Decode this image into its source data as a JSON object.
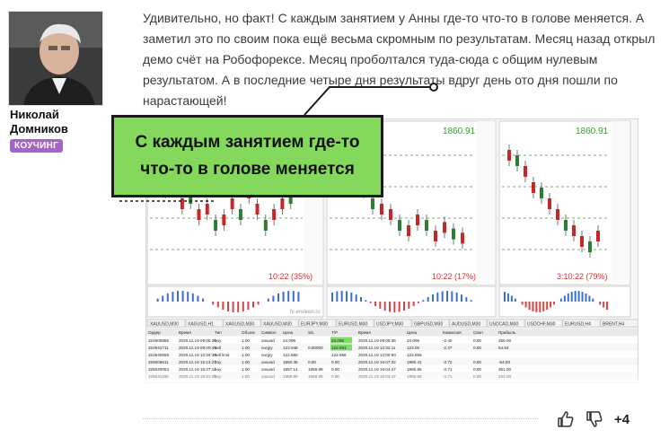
{
  "author": {
    "name": "Николай Домников",
    "role": "КОУЧИНГ"
  },
  "post": {
    "text": "Удивительно, но факт! С каждым занятием у Анны где-то что-то в голове меняется. А заметил это по своим пока ещё весьма скромным по результатам. Месяц назад открыл демо счёт на Робофорексе. Месяц проболтался туда-сюда с общим нулевым результатом. А в последние четыре дня результаты вдруг день ото дня пошли по нарастающей!"
  },
  "callout": {
    "line1": "С каждым занятием где-то",
    "line2": "что-то в голове меняется"
  },
  "terminal": {
    "prices": [
      "1860.91",
      "1860.91"
    ],
    "progress_labels": [
      "10:22 (35%)",
      "10:22 (17%)",
      "3:10:22 (79%)"
    ],
    "watermark": "fx-ereleen.ru",
    "tabs": [
      "XAUUSD,M30",
      "XAGUSD,H1",
      "XAGUSD,M30",
      "XAUUSD,M30",
      "EURJPY,M30",
      "EURUSD,M30",
      "USDJPY,M30",
      "GBPUSD,M30",
      "AUDUSD,M30",
      "USDCAD,M30",
      "USDCHF,M30",
      "EURUSD,H4",
      "BRENT,H4"
    ],
    "table_headers": [
      "Ордер",
      "Время",
      "Тип",
      "Объем",
      "Символ",
      "Цена",
      "S/L",
      "T/P",
      "Время",
      "Цена",
      "Комиссия",
      "Своп",
      "Прибыль"
    ],
    "rows": [
      [
        "324906886",
        "2020.11.19 09:05:36",
        "buy",
        "1.00",
        "xauusd",
        "24.095",
        "",
        "24.096",
        "2020.11.19 09:05:36",
        "24.096",
        "-2.40",
        "0.00",
        "255.00"
      ],
      [
        "324941711",
        "2020.11.19 09:40:49",
        "sell",
        "1.00",
        "eurjpy",
        "123.049",
        "0.00000",
        "122.591",
        "2020.11.19 12:32:11",
        "123.00",
        "-2.37",
        "0.00",
        "54.84"
      ],
      [
        "324940658",
        "2020.11.19 12:34:30",
        "sell limit",
        "1.00",
        "eurjpy",
        "122.880",
        "",
        "122.856",
        "2020.11.19 12:00:50",
        "122.856",
        "",
        "",
        ""
      ],
      [
        "325006611",
        "2020.11.19 15:13:27",
        "buy",
        "1.00",
        "xauusd",
        "1860.36",
        "0.00",
        "0.00",
        "2020.11.19 16:07:32",
        "1860.41",
        "-3.72",
        "0.00",
        "-54.00"
      ],
      [
        "325040063",
        "2020.11.19 15:37:11",
        "buy",
        "1.00",
        "xauusd",
        "1857.14",
        "1858.98",
        "0.00",
        "2020.11.19 16:04:47",
        "1860.65",
        "-3.71",
        "0.00",
        "351.00"
      ],
      [
        "325041180",
        "2020.11.19 15:31:28",
        "buy",
        "1.00",
        "xauusd",
        "1858.90",
        "1858.98",
        "0.00",
        "2020.11.19 16:04:47",
        "1860.65",
        "-3.71",
        "0.00",
        "224.00"
      ],
      [
        "325040874",
        "2020.11.19 15:37:25",
        "buy",
        "1.00",
        "xauusd",
        "1855.63",
        "1858.05",
        "0.00",
        "2020.11.19 16:04:47",
        "1860.62",
        "-3.71",
        "0.00",
        "499.00"
      ]
    ]
  },
  "reactions": {
    "score": "+4"
  },
  "colors": {
    "badge": "#a763c9",
    "callout": "#84d85c",
    "bull": "#2e7d32",
    "bear": "#c62828"
  }
}
